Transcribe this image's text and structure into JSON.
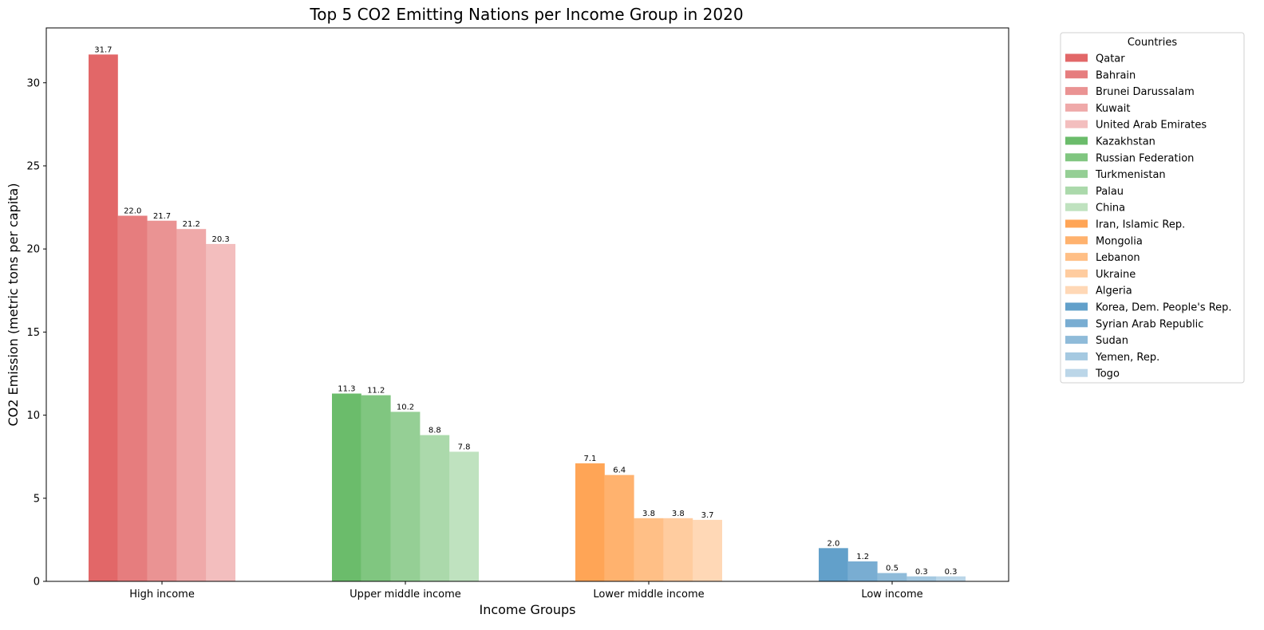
{
  "chart_data": {
    "type": "bar",
    "title": "Top 5 CO2 Emitting Nations per Income Group in 2020",
    "xlabel": "Income Groups",
    "ylabel": "CO2 Emission (metric tons per capita)",
    "ylim": [
      0,
      33.3
    ],
    "yticks": [
      0,
      5,
      10,
      15,
      20,
      25,
      30
    ],
    "grid": false,
    "legend_title": "Countries",
    "legend_position": "outside-right-top",
    "groups": [
      {
        "name": "High income",
        "color": "#d62728",
        "bars": [
          {
            "country": "Qatar",
            "value": 31.7,
            "label": "31.7"
          },
          {
            "country": "Bahrain",
            "value": 22.0,
            "label": "22.0"
          },
          {
            "country": "Brunei Darussalam",
            "value": 21.7,
            "label": "21.7"
          },
          {
            "country": "Kuwait",
            "value": 21.2,
            "label": "21.2"
          },
          {
            "country": "United Arab Emirates",
            "value": 20.3,
            "label": "20.3"
          }
        ]
      },
      {
        "name": "Upper middle income",
        "color": "#2ca02c",
        "bars": [
          {
            "country": "Kazakhstan",
            "value": 11.3,
            "label": "11.3"
          },
          {
            "country": "Russian Federation",
            "value": 11.2,
            "label": "11.2"
          },
          {
            "country": "Turkmenistan",
            "value": 10.2,
            "label": "10.2"
          },
          {
            "country": "Palau",
            "value": 8.8,
            "label": "8.8"
          },
          {
            "country": "China",
            "value": 7.8,
            "label": "7.8"
          }
        ]
      },
      {
        "name": "Lower middle income",
        "color": "#ff7f0e",
        "bars": [
          {
            "country": "Iran, Islamic Rep.",
            "value": 7.1,
            "label": "7.1"
          },
          {
            "country": "Mongolia",
            "value": 6.4,
            "label": "6.4"
          },
          {
            "country": "Lebanon",
            "value": 3.8,
            "label": "3.8"
          },
          {
            "country": "Ukraine",
            "value": 3.8,
            "label": "3.8"
          },
          {
            "country": "Algeria",
            "value": 3.7,
            "label": "3.7"
          }
        ]
      },
      {
        "name": "Low income",
        "color": "#1f77b4",
        "bars": [
          {
            "country": "Korea, Dem. People's Rep.",
            "value": 2.0,
            "label": "2.0"
          },
          {
            "country": "Syrian Arab Republic",
            "value": 1.2,
            "label": "1.2"
          },
          {
            "country": "Sudan",
            "value": 0.5,
            "label": "0.5"
          },
          {
            "country": "Yemen, Rep.",
            "value": 0.3,
            "label": "0.3"
          },
          {
            "country": "Togo",
            "value": 0.3,
            "label": "0.3"
          }
        ]
      }
    ],
    "bar_alphas": [
      0.7,
      0.6,
      0.5,
      0.4,
      0.3
    ]
  }
}
